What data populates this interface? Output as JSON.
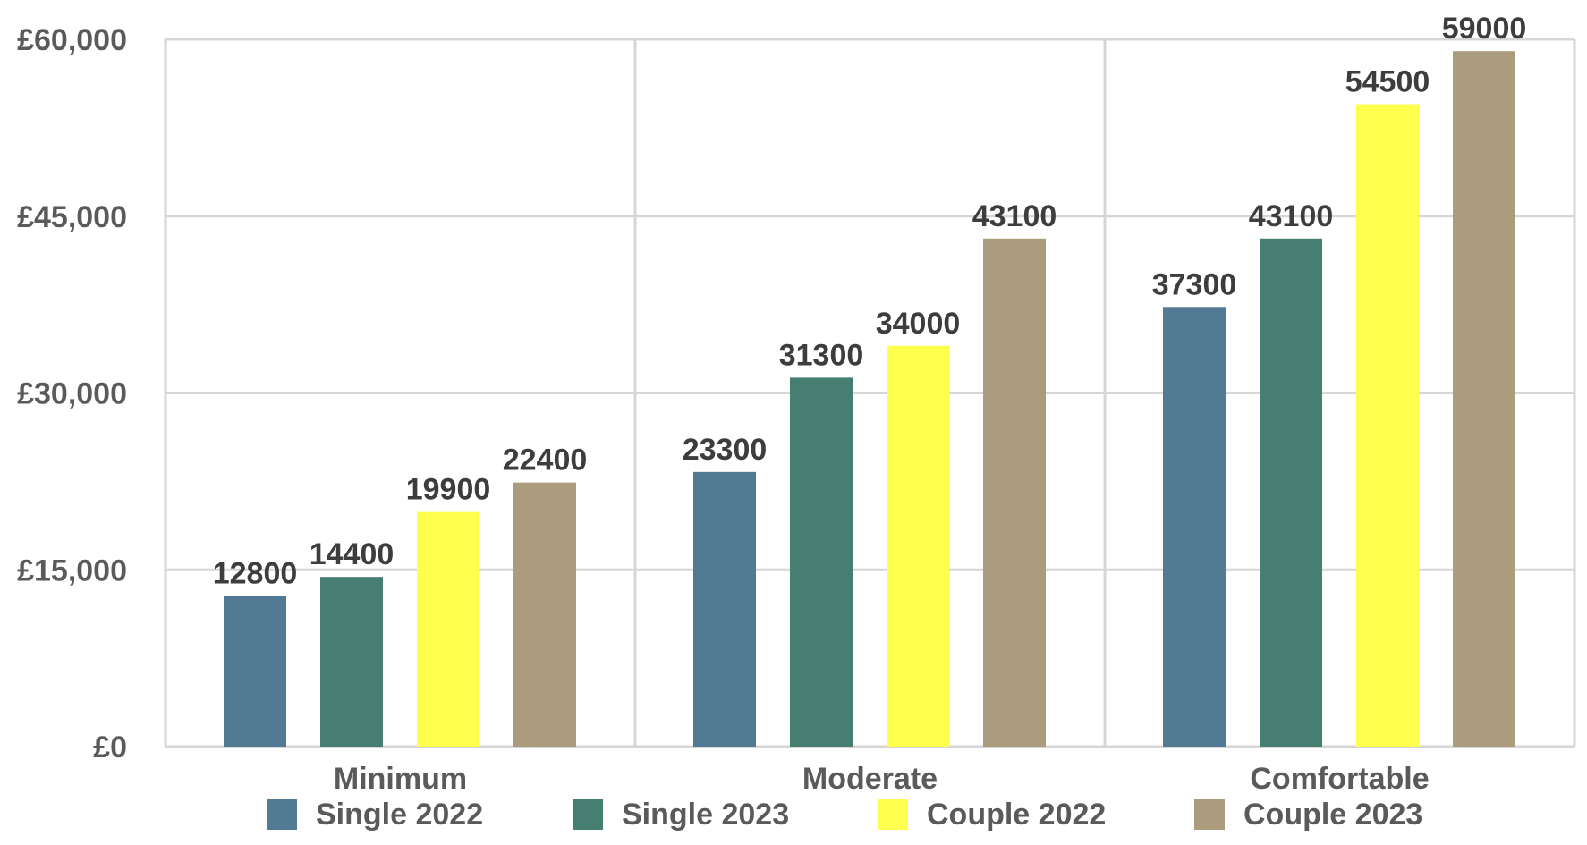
{
  "chart_data": {
    "type": "bar",
    "categories": [
      "Minimum",
      "Moderate",
      "Comfortable"
    ],
    "series": [
      {
        "name": "Single 2022",
        "color": "#537a95",
        "values": [
          12800,
          23300,
          37300
        ]
      },
      {
        "name": "Single 2023",
        "color": "#467f72",
        "values": [
          14400,
          31300,
          43100
        ]
      },
      {
        "name": "Couple 2022",
        "color": "#ffff4d",
        "values": [
          19900,
          34000,
          54500
        ]
      },
      {
        "name": "Couple 2023",
        "color": "#ab9c7e",
        "values": [
          22400,
          43100,
          59000
        ]
      }
    ],
    "yticks": [
      "£0",
      "£15,000",
      "£30,000",
      "£45,000",
      "£60,000"
    ],
    "ylim": [
      0,
      60000
    ],
    "grid": true,
    "legend_position": "bottom",
    "title": "",
    "xlabel": "",
    "ylabel": ""
  }
}
